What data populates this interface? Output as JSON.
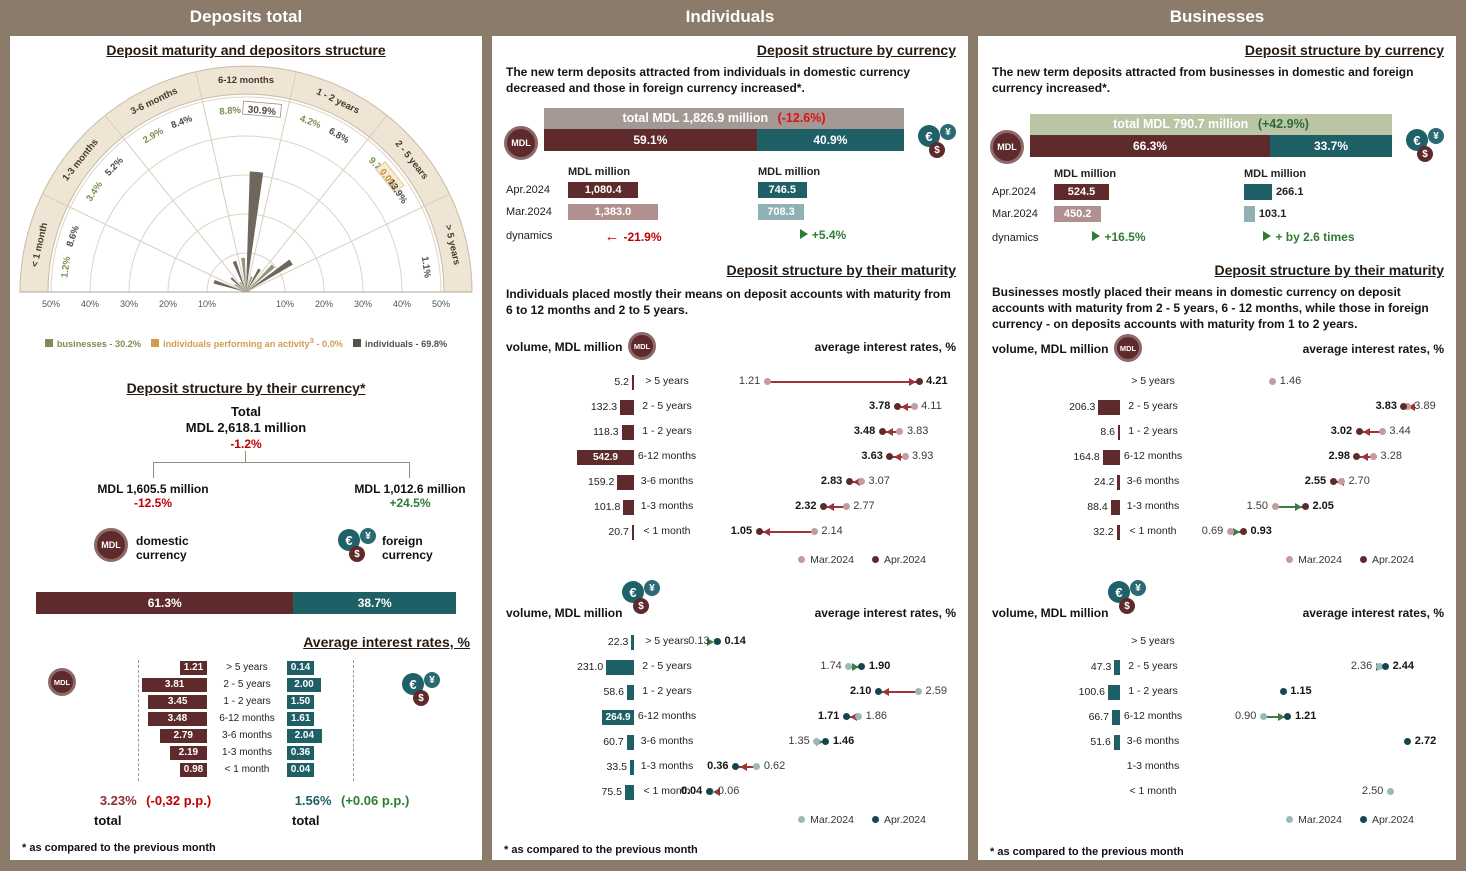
{
  "header": {
    "columns": [
      "Deposits total",
      "Individuals",
      "Businesses"
    ]
  },
  "left": {
    "rose_title": "Deposit maturity and depositors structure",
    "legend": [
      {
        "label": "businesses - 30.2%",
        "color": "#7d8e52"
      },
      {
        "label": "individuals performing an activity",
        "sup": "3",
        "suffix": " - 0.0%",
        "color": "#d29c4f"
      },
      {
        "label": "individuals - 69.8%",
        "color": "#55504a"
      }
    ],
    "currency": {
      "title": "Deposit structure by their currency*",
      "total_label": "Total",
      "total_value": "MDL 2,618.1 million",
      "total_change": "-1.2%",
      "domestic": {
        "value": "MDL 1,605.5 million",
        "change": "-12.5%",
        "label": "domestic currency"
      },
      "foreign": {
        "value": "MDL 1,012.6 million",
        "change": "+24.5%",
        "label": "foreign currency"
      },
      "split": {
        "domestic_pct": "61.3%",
        "foreign_pct": "38.7%"
      }
    },
    "rates_title": "Average interest rates, %",
    "totals": {
      "mdl": {
        "value": "3.23%",
        "change": "(-0,32 p.p.)",
        "label": "total"
      },
      "fcy": {
        "value": "1.56%",
        "change": "(+0.06 p.p.)",
        "label": "total"
      }
    },
    "footnote": "* as compared to the previous month"
  },
  "individuals": {
    "currency_title": "Deposit structure by currency",
    "currency_text": "The new term deposits attracted from individuals in domestic currency decreased and those in foreign currency increased*.",
    "total_bar": {
      "text": "total MDL 1,826.9 million",
      "change": "(-12.6%)",
      "bar_color": "#a39893",
      "change_color": "#e01111"
    },
    "split": {
      "mdl": "59.1%",
      "fcy": "40.9%"
    },
    "table": {
      "header": "MDL million",
      "rows": [
        "Apr.2024",
        "Mar.2024"
      ],
      "dynamics_label": "dynamics",
      "dynamics": [
        {
          "text": "-21.9%",
          "dir": "left",
          "color": "#c00000"
        },
        {
          "text": "+5.4%",
          "dir": "right",
          "color": "#2f7d33"
        }
      ]
    },
    "maturity_title": "Deposit structure by their maturity",
    "maturity_text": "Individuals placed mostly their means on deposit accounts with maturity from 6 to 12 months and 2 to 5 years.",
    "volume_label": "volume, MDL million",
    "rates_label": "average interest rates, %",
    "legend": [
      "Mar.2024",
      "Apr.2024"
    ],
    "footnote": "* as compared to the previous month"
  },
  "businesses": {
    "currency_title": "Deposit structure by currency",
    "currency_text": "The new term deposits attracted from businesses in domestic and foreign currency increased*.",
    "total_bar": {
      "text": "total MDL 790.7 million",
      "change": "(+42.9%)",
      "bar_color": "#b9c5a5",
      "change_color": "#2f6b33"
    },
    "split": {
      "mdl": "66.3%",
      "fcy": "33.7%"
    },
    "table": {
      "header": "MDL million",
      "rows": [
        "Apr.2024",
        "Mar.2024"
      ],
      "dynamics_label": "dynamics",
      "dynamics": [
        {
          "text": "+16.5%",
          "dir": "right",
          "color": "#2f7d33"
        },
        {
          "text": "+ by 2.6 times",
          "dir": "right",
          "color": "#2f7d33"
        }
      ]
    },
    "maturity_title": "Deposit structure by their maturity",
    "maturity_text": "Businesses mostly placed their means in domestic currency on deposit accounts with maturity from 2 - 5 years, 6 - 12 months, while those in foreign currency - on deposits accounts with maturity from 1 to 2 years.",
    "volume_label": "volume, MDL million",
    "rates_label": "average interest rates, %",
    "legend": [
      "Mar.2024",
      "Apr.2024"
    ],
    "footnote": "* as compared to the previous month"
  },
  "chart_data": [
    {
      "id": "depositors_structure_rose",
      "type": "pie",
      "title": "Deposit maturity and depositors structure (rose chart, % of total deposits)",
      "categories": [
        "< 1 month",
        "1-3 months",
        "3-6 months",
        "6-12 months",
        "1 - 2 years",
        "2 - 5 years",
        "> 5 years"
      ],
      "series": [
        {
          "name": "businesses",
          "total_pct": 30.2,
          "values": [
            1.2,
            3.4,
            2.9,
            8.8,
            4.2,
            9.7,
            null
          ]
        },
        {
          "name": "individuals_performing_activity",
          "total_pct": 0.0,
          "values": [
            null,
            null,
            null,
            null,
            null,
            0.0,
            null
          ]
        },
        {
          "name": "individuals",
          "total_pct": 69.8,
          "values": [
            8.6,
            5.2,
            8.4,
            30.9,
            6.8,
            13.9,
            1.1
          ]
        }
      ],
      "r_ticks_pct": [
        10,
        20,
        30,
        40,
        50
      ]
    },
    {
      "id": "avg_rates_tornado",
      "type": "bar",
      "title": "Average interest rates, %",
      "categories": [
        "> 5 years",
        "2 - 5 years",
        "1 - 2 years",
        "6-12 months",
        "3-6 months",
        "1-3 months",
        "< 1 month"
      ],
      "series": [
        {
          "name": "domestic currency (MDL)",
          "values": [
            1.21,
            3.81,
            3.45,
            3.48,
            2.79,
            2.19,
            0.98
          ],
          "total": 3.23,
          "change": "-0.32 p.p."
        },
        {
          "name": "foreign currency",
          "values": [
            0.14,
            2.0,
            1.5,
            1.61,
            2.04,
            0.36,
            0.04
          ],
          "total": 1.56,
          "change": "+0.06 p.p."
        }
      ]
    },
    {
      "id": "ind_currency_bars",
      "type": "bar",
      "title": "Individuals: new term deposits by currency, MDL million",
      "rows": [
        "Apr.2024",
        "Mar.2024"
      ],
      "mdl": [
        1080.4,
        1383.0
      ],
      "fcy": [
        746.5,
        708.3
      ],
      "split_pct": [
        59.1,
        40.9
      ],
      "total_mln": 1826.9,
      "change_pct": -12.6,
      "dynamics": [
        "-21.9%",
        "+5.4%"
      ]
    },
    {
      "id": "bus_currency_bars",
      "type": "bar",
      "title": "Businesses: new term deposits by currency, MDL million",
      "rows": [
        "Apr.2024",
        "Mar.2024"
      ],
      "mdl": [
        524.5,
        450.2
      ],
      "fcy": [
        266.1,
        103.1
      ],
      "split_pct": [
        66.3,
        33.7
      ],
      "total_mln": 790.7,
      "change_pct": 42.9,
      "dynamics": [
        "+16.5%",
        "+ by 2.6 times"
      ]
    },
    {
      "id": "ind_dom_maturity",
      "type": "bar",
      "title": "Individuals, domestic currency: volume (MDL million) and average interest rates (%) by maturity",
      "categories": [
        "> 5 years",
        "2 - 5 years",
        "1 - 2 years",
        "6-12 months",
        "3-6 months",
        "1-3 months",
        "< 1 month"
      ],
      "volumes": [
        5.2,
        132.3,
        118.3,
        542.9,
        159.2,
        101.8,
        20.7
      ],
      "rate_mar": [
        1.21,
        4.11,
        3.83,
        3.93,
        3.07,
        2.77,
        2.14
      ],
      "rate_apr": [
        4.21,
        3.78,
        3.48,
        3.63,
        2.83,
        2.32,
        1.05
      ],
      "scale_max": 4.7
    },
    {
      "id": "ind_fcy_maturity",
      "type": "bar",
      "title": "Individuals, foreign currency: volume (MDL million) and average interest rates (%) by maturity",
      "categories": [
        "> 5 years",
        "2 - 5 years",
        "1 - 2 years",
        "6-12 months",
        "3-6 months",
        "1-3 months",
        "< 1 month"
      ],
      "volumes": [
        22.3,
        231.0,
        58.6,
        264.9,
        60.7,
        33.5,
        75.5
      ],
      "rate_mar": [
        0.13,
        1.74,
        2.59,
        1.86,
        1.35,
        0.62,
        0.06
      ],
      "rate_apr": [
        0.14,
        1.9,
        2.1,
        1.71,
        1.46,
        0.36,
        0.04
      ],
      "scale_max": 2.9
    },
    {
      "id": "bus_dom_maturity",
      "type": "bar",
      "title": "Businesses, domestic currency: volume (MDL million) and average interest rates (%) by maturity",
      "categories": [
        "> 5 years",
        "2 - 5 years",
        "1 - 2 years",
        "6-12 months",
        "3-6 months",
        "1-3 months",
        "< 1 month"
      ],
      "volumes": [
        null,
        206.3,
        8.6,
        164.8,
        24.2,
        88.4,
        32.2
      ],
      "rate_mar": [
        1.46,
        3.89,
        3.44,
        3.28,
        2.7,
        1.5,
        0.69
      ],
      "rate_apr": [
        null,
        3.83,
        3.02,
        2.98,
        2.55,
        2.05,
        0.93
      ],
      "scale_max": 4.3
    },
    {
      "id": "bus_fcy_maturity",
      "type": "bar",
      "title": "Businesses, foreign currency: volume (MDL million) and average interest rates (%) by maturity",
      "categories": [
        "> 5 years",
        "2 - 5 years",
        "1 - 2 years",
        "6-12 months",
        "3-6 months",
        "1-3 months",
        "< 1 month"
      ],
      "volumes": [
        null,
        47.3,
        100.6,
        66.7,
        51.6,
        null,
        null
      ],
      "rate_mar": [
        null,
        2.36,
        null,
        0.9,
        null,
        null,
        2.5
      ],
      "rate_apr": [
        null,
        2.44,
        1.15,
        1.21,
        2.72,
        null,
        null
      ],
      "scale_max": 3.0
    }
  ]
}
